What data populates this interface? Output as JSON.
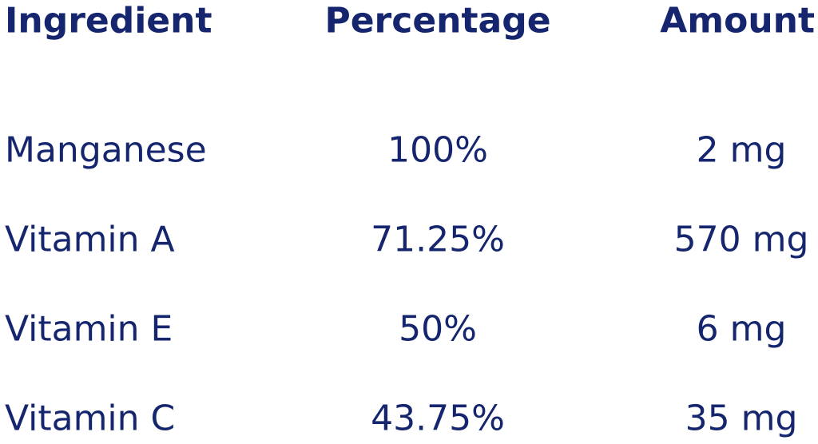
{
  "table": {
    "header": [
      "Ingredient",
      "Percentage",
      "Amount"
    ],
    "rows": [
      [
        "Manganese",
        "100%",
        "2 mg"
      ],
      [
        "Vitamin A",
        "71.25%",
        "570 mg"
      ],
      [
        "Vitamin E",
        "50%",
        "6 mg"
      ],
      [
        "Vitamin C",
        "43.75%",
        "35 mg"
      ]
    ]
  }
}
